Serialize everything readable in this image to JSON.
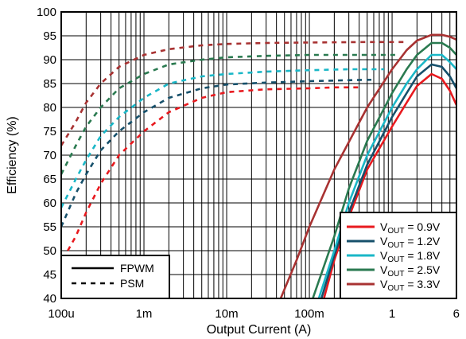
{
  "chart_data": {
    "type": "line",
    "title": "",
    "xlabel": "Output Current (A)",
    "ylabel": "Efficiency (%)",
    "x_scale": "log",
    "xlim": [
      0.0001,
      6
    ],
    "ylim": [
      40,
      100
    ],
    "grid": true,
    "x_ticks": [
      {
        "value": 0.0001,
        "label": "100u"
      },
      {
        "value": 0.001,
        "label": "1m"
      },
      {
        "value": 0.01,
        "label": "10m"
      },
      {
        "value": 0.1,
        "label": "100m"
      },
      {
        "value": 1,
        "label": "1"
      },
      {
        "value": 6,
        "label": "6"
      }
    ],
    "y_ticks": [
      40,
      45,
      50,
      55,
      60,
      65,
      70,
      75,
      80,
      85,
      90,
      95,
      100
    ],
    "legend_vout": {
      "placement": "bottom-right",
      "entries": [
        {
          "prefix": "V",
          "sub": "OUT",
          "suffix": " = 0.9V",
          "color": "#e8191e"
        },
        {
          "prefix": "V",
          "sub": "OUT",
          "suffix": " = 1.2V",
          "color": "#16506b"
        },
        {
          "prefix": "V",
          "sub": "OUT",
          "suffix": " = 1.8V",
          "color": "#1ab7c7"
        },
        {
          "prefix": "V",
          "sub": "OUT",
          "suffix": " = 2.5V",
          "color": "#2a7a50"
        },
        {
          "prefix": "V",
          "sub": "OUT",
          "suffix": " = 3.3V",
          "color": "#a83232"
        }
      ]
    },
    "legend_mode": {
      "placement": "bottom-left",
      "entries": [
        {
          "label": "FPWM",
          "style": "solid"
        },
        {
          "label": "PSM",
          "style": "dashed"
        }
      ]
    },
    "series": [
      {
        "vout": "0.9V",
        "mode": "FPWM",
        "color": "#e8191e",
        "points": [
          [
            0.15,
            40
          ],
          [
            0.2,
            48
          ],
          [
            0.3,
            57
          ],
          [
            0.5,
            67
          ],
          [
            1,
            76
          ],
          [
            1.5,
            81
          ],
          [
            2,
            84.5
          ],
          [
            3,
            87
          ],
          [
            4,
            86
          ],
          [
            5,
            83.5
          ],
          [
            6,
            80.5
          ]
        ]
      },
      {
        "vout": "0.9V",
        "mode": "PSM",
        "color": "#e8191e",
        "points": [
          [
            0.00012,
            50
          ],
          [
            0.00015,
            53
          ],
          [
            0.0002,
            58
          ],
          [
            0.0003,
            64
          ],
          [
            0.0005,
            70
          ],
          [
            0.001,
            75
          ],
          [
            0.002,
            79
          ],
          [
            0.005,
            82
          ],
          [
            0.01,
            83.2
          ],
          [
            0.03,
            83.8
          ],
          [
            0.1,
            84
          ],
          [
            0.2,
            84.2
          ],
          [
            0.4,
            84.2
          ]
        ]
      },
      {
        "vout": "1.2V",
        "mode": "FPWM",
        "color": "#16506b",
        "points": [
          [
            0.14,
            40
          ],
          [
            0.2,
            49
          ],
          [
            0.3,
            58
          ],
          [
            0.5,
            68
          ],
          [
            1,
            78
          ],
          [
            1.5,
            83
          ],
          [
            2,
            86.5
          ],
          [
            3,
            89
          ],
          [
            4,
            88.5
          ],
          [
            5,
            86.5
          ],
          [
            6,
            84
          ]
        ]
      },
      {
        "vout": "1.2V",
        "mode": "PSM",
        "color": "#16506b",
        "points": [
          [
            0.0001,
            55
          ],
          [
            0.00015,
            62
          ],
          [
            0.0002,
            66
          ],
          [
            0.0003,
            71
          ],
          [
            0.0005,
            75
          ],
          [
            0.001,
            79
          ],
          [
            0.002,
            82
          ],
          [
            0.005,
            84
          ],
          [
            0.01,
            84.8
          ],
          [
            0.03,
            85.2
          ],
          [
            0.1,
            85.5
          ],
          [
            0.3,
            85.7
          ],
          [
            0.6,
            85.8
          ]
        ]
      },
      {
        "vout": "1.8V",
        "mode": "FPWM",
        "color": "#1ab7c7",
        "points": [
          [
            0.13,
            40
          ],
          [
            0.2,
            50
          ],
          [
            0.3,
            60
          ],
          [
            0.5,
            70
          ],
          [
            1,
            80
          ],
          [
            1.5,
            85
          ],
          [
            2,
            88
          ],
          [
            3,
            91
          ],
          [
            4,
            91
          ],
          [
            5,
            89.5
          ],
          [
            6,
            88
          ]
        ]
      },
      {
        "vout": "1.8V",
        "mode": "PSM",
        "color": "#1ab7c7",
        "points": [
          [
            0.0001,
            59
          ],
          [
            0.00015,
            65
          ],
          [
            0.0002,
            69
          ],
          [
            0.0003,
            74
          ],
          [
            0.0005,
            78
          ],
          [
            0.001,
            82
          ],
          [
            0.002,
            85
          ],
          [
            0.005,
            86.5
          ],
          [
            0.01,
            87
          ],
          [
            0.03,
            87.5
          ],
          [
            0.1,
            87.8
          ],
          [
            0.3,
            88
          ],
          [
            0.8,
            88
          ]
        ]
      },
      {
        "vout": "2.5V",
        "mode": "FPWM",
        "color": "#2a7a50",
        "points": [
          [
            0.11,
            40
          ],
          [
            0.2,
            53
          ],
          [
            0.3,
            63
          ],
          [
            0.5,
            73
          ],
          [
            1,
            83
          ],
          [
            1.5,
            88
          ],
          [
            2,
            91
          ],
          [
            3,
            93.5
          ],
          [
            4,
            93.5
          ],
          [
            5,
            92.5
          ],
          [
            6,
            91
          ]
        ]
      },
      {
        "vout": "2.5V",
        "mode": "PSM",
        "color": "#2a7a50",
        "points": [
          [
            0.0001,
            66
          ],
          [
            0.00015,
            72
          ],
          [
            0.0002,
            76
          ],
          [
            0.0003,
            80
          ],
          [
            0.0005,
            84
          ],
          [
            0.001,
            87
          ],
          [
            0.002,
            89
          ],
          [
            0.005,
            90
          ],
          [
            0.01,
            90.5
          ],
          [
            0.03,
            90.8
          ],
          [
            0.1,
            91
          ],
          [
            0.3,
            91
          ],
          [
            1.2,
            91
          ]
        ]
      },
      {
        "vout": "3.3V",
        "mode": "FPWM",
        "color": "#a83232",
        "points": [
          [
            0.045,
            40
          ],
          [
            0.07,
            48
          ],
          [
            0.1,
            55
          ],
          [
            0.2,
            67
          ],
          [
            0.5,
            80
          ],
          [
            1,
            88
          ],
          [
            1.5,
            92
          ],
          [
            2,
            94
          ],
          [
            3,
            95.2
          ],
          [
            4,
            95.2
          ],
          [
            5,
            94.8
          ],
          [
            6,
            94.2
          ]
        ]
      },
      {
        "vout": "3.3V",
        "mode": "PSM",
        "color": "#a83232",
        "points": [
          [
            0.0001,
            72
          ],
          [
            0.00015,
            77
          ],
          [
            0.0002,
            81
          ],
          [
            0.0003,
            85
          ],
          [
            0.0005,
            88.5
          ],
          [
            0.001,
            91
          ],
          [
            0.002,
            92.2
          ],
          [
            0.005,
            93
          ],
          [
            0.01,
            93.3
          ],
          [
            0.03,
            93.5
          ],
          [
            0.1,
            93.6
          ],
          [
            0.5,
            93.7
          ],
          [
            1.5,
            93.7
          ]
        ]
      }
    ]
  }
}
